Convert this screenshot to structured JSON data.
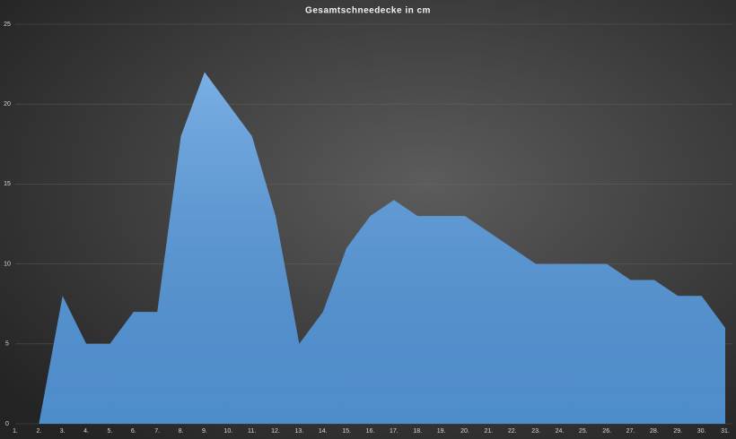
{
  "chart_data": {
    "type": "area",
    "title": "Gesamtschneedecke  in cm",
    "categories": [
      "1.",
      "2.",
      "3.",
      "4.",
      "5.",
      "6.",
      "7.",
      "8.",
      "9.",
      "10.",
      "11.",
      "12.",
      "13.",
      "14.",
      "15.",
      "16.",
      "17.",
      "18.",
      "19.",
      "20.",
      "21.",
      "22.",
      "23.",
      "24.",
      "25.",
      "26.",
      "27.",
      "28.",
      "29.",
      "30.",
      "31."
    ],
    "values": [
      0,
      0,
      8,
      5,
      5,
      7,
      7,
      18,
      22,
      20,
      18,
      13,
      5,
      7,
      11,
      13,
      14,
      13,
      13,
      13,
      12,
      11,
      10,
      10,
      10,
      10,
      9,
      9,
      8,
      8,
      6
    ],
    "color": "#5599dd",
    "ylim": [
      0,
      25
    ],
    "yticks": [
      0,
      5,
      10,
      15,
      20,
      25
    ],
    "grid": true
  }
}
